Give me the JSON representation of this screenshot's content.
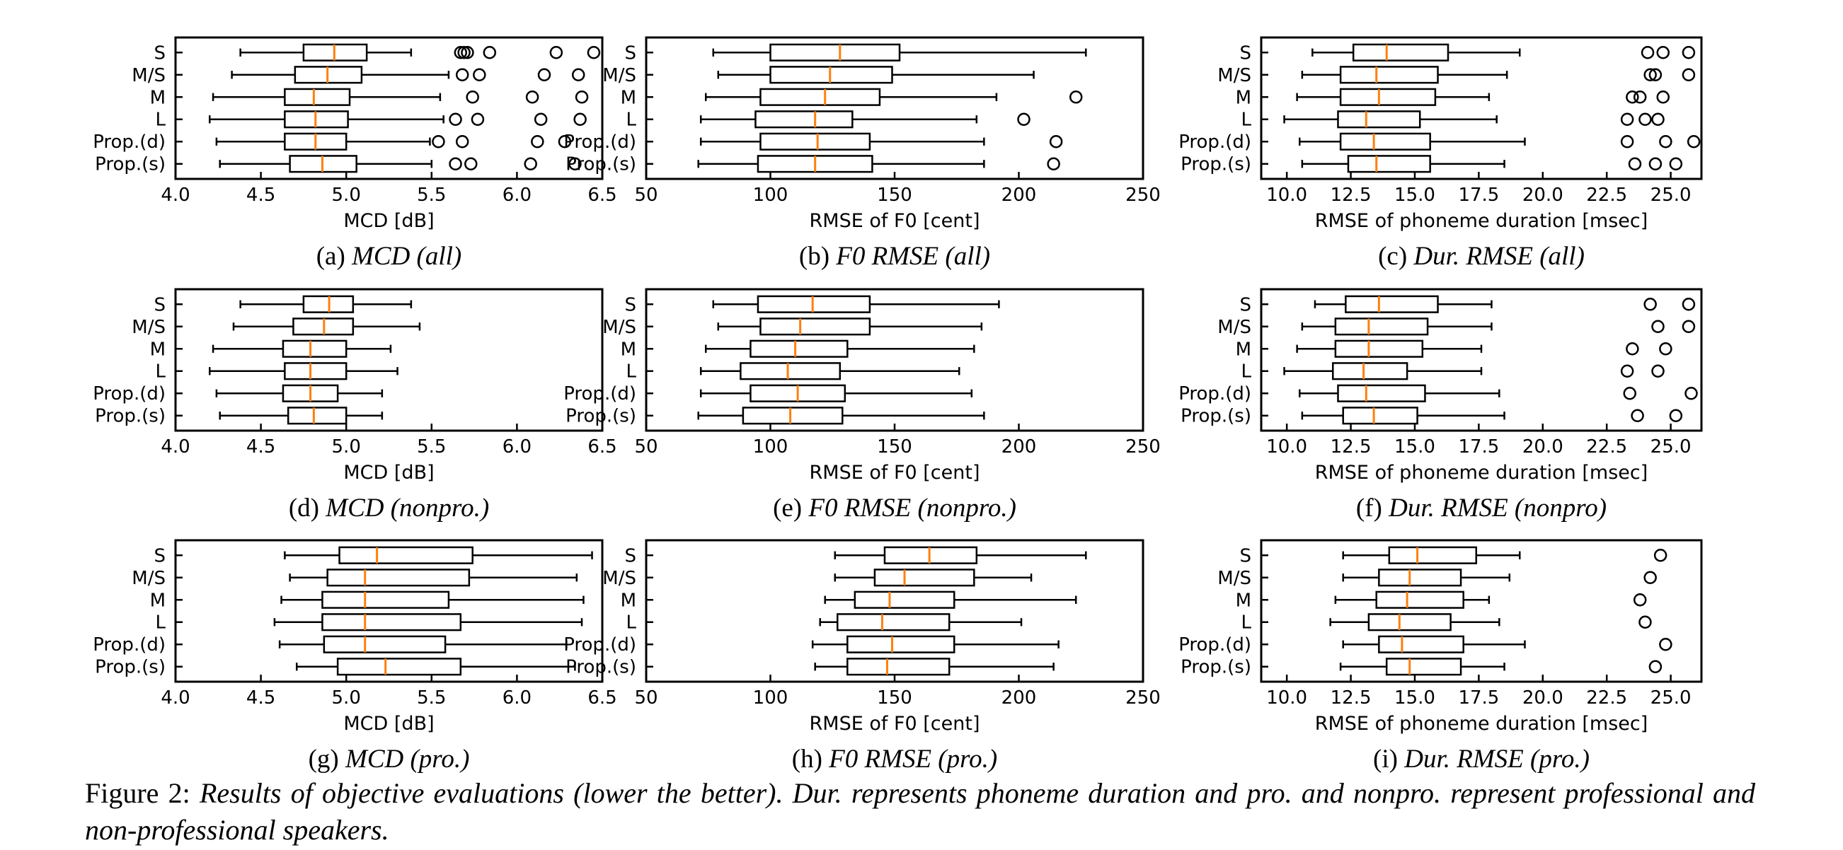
{
  "figure": {
    "caption_label": "Figure 2:",
    "caption_text": "Results of objective evaluations (lower the better). Dur. represents phoneme duration and pro. and nonpro. represent professional and non-professional speakers.",
    "colors": {
      "median": "#ff7f0e",
      "box": "#000000",
      "background": "#ffffff"
    }
  },
  "chart_data": [
    {
      "type": "boxplot",
      "xlabel": "MCD [dB]",
      "sub_label": "(a)",
      "sub_title": "MCD (all)",
      "xlim": [
        4.0,
        6.5
      ],
      "xticks": [
        4.0,
        4.5,
        5.0,
        5.5,
        6.0,
        6.5
      ],
      "tick_labels": [
        "4.0",
        "4.5",
        "5.0",
        "5.5",
        "6.0",
        "6.5"
      ],
      "categories": [
        "S",
        "M/S",
        "M",
        "L",
        "Prop.(d)",
        "Prop.(s)"
      ],
      "boxes": [
        {
          "whislo": 4.38,
          "q1": 4.75,
          "med": 4.93,
          "q3": 5.12,
          "whishi": 5.38,
          "fliers": [
            5.67,
            5.69,
            5.71,
            5.84,
            6.23,
            6.45
          ]
        },
        {
          "whislo": 4.33,
          "q1": 4.7,
          "med": 4.89,
          "q3": 5.09,
          "whishi": 5.6,
          "fliers": [
            5.68,
            5.78,
            6.16,
            6.36
          ]
        },
        {
          "whislo": 4.22,
          "q1": 4.64,
          "med": 4.81,
          "q3": 5.02,
          "whishi": 5.55,
          "fliers": [
            5.74,
            6.09,
            6.38
          ]
        },
        {
          "whislo": 4.2,
          "q1": 4.64,
          "med": 4.82,
          "q3": 5.01,
          "whishi": 5.57,
          "fliers": [
            5.64,
            5.77,
            6.14,
            6.37
          ]
        },
        {
          "whislo": 4.24,
          "q1": 4.64,
          "med": 4.82,
          "q3": 5.0,
          "whishi": 5.49,
          "fliers": [
            5.54,
            5.68,
            6.12,
            6.28
          ]
        },
        {
          "whislo": 4.26,
          "q1": 4.67,
          "med": 4.86,
          "q3": 5.06,
          "whishi": 5.5,
          "fliers": [
            5.64,
            5.73,
            6.08,
            6.34
          ]
        }
      ]
    },
    {
      "type": "boxplot",
      "xlabel": "RMSE of F0 [cent]",
      "sub_label": "(b)",
      "sub_title": "F0 RMSE (all)",
      "xlim": [
        50,
        250
      ],
      "xticks": [
        50,
        100,
        150,
        200,
        250
      ],
      "tick_labels": [
        "50",
        "100",
        "150",
        "200",
        "250"
      ],
      "categories": [
        "S",
        "M/S",
        "M",
        "L",
        "Prop.(d)",
        "Prop.(s)"
      ],
      "boxes": [
        {
          "whislo": 77,
          "q1": 100,
          "med": 128,
          "q3": 152,
          "whishi": 227,
          "fliers": []
        },
        {
          "whislo": 79,
          "q1": 100,
          "med": 124,
          "q3": 149,
          "whishi": 206,
          "fliers": []
        },
        {
          "whislo": 74,
          "q1": 96,
          "med": 122,
          "q3": 144,
          "whishi": 191,
          "fliers": [
            223
          ]
        },
        {
          "whislo": 72,
          "q1": 94,
          "med": 118,
          "q3": 133,
          "whishi": 183,
          "fliers": [
            202
          ]
        },
        {
          "whislo": 72,
          "q1": 96,
          "med": 119,
          "q3": 140,
          "whishi": 186,
          "fliers": [
            215
          ]
        },
        {
          "whislo": 71,
          "q1": 95,
          "med": 118,
          "q3": 141,
          "whishi": 186,
          "fliers": [
            214
          ]
        }
      ]
    },
    {
      "type": "boxplot",
      "xlabel": "RMSE of phoneme duration [msec]",
      "sub_label": "(c)",
      "sub_title": "Dur. RMSE (all)",
      "xlim": [
        9.0,
        26.2
      ],
      "xticks": [
        10.0,
        12.5,
        15.0,
        17.5,
        20.0,
        22.5,
        25.0
      ],
      "tick_labels": [
        "10.0",
        "12.5",
        "15.0",
        "17.5",
        "20.0",
        "22.5",
        "25.0"
      ],
      "categories": [
        "S",
        "M/S",
        "M",
        "L",
        "Prop.(d)",
        "Prop.(s)"
      ],
      "boxes": [
        {
          "whislo": 11.0,
          "q1": 12.6,
          "med": 13.9,
          "q3": 16.3,
          "whishi": 19.1,
          "fliers": [
            24.1,
            24.7,
            25.7
          ]
        },
        {
          "whislo": 10.6,
          "q1": 12.1,
          "med": 13.5,
          "q3": 15.9,
          "whishi": 18.6,
          "fliers": [
            24.2,
            24.4,
            25.7
          ]
        },
        {
          "whislo": 10.4,
          "q1": 12.1,
          "med": 13.6,
          "q3": 15.8,
          "whishi": 17.9,
          "fliers": [
            23.5,
            23.8,
            24.7
          ]
        },
        {
          "whislo": 9.9,
          "q1": 12.0,
          "med": 13.1,
          "q3": 15.2,
          "whishi": 18.2,
          "fliers": [
            23.3,
            24.0,
            24.5
          ]
        },
        {
          "whislo": 10.5,
          "q1": 12.1,
          "med": 13.4,
          "q3": 15.6,
          "whishi": 19.3,
          "fliers": [
            23.3,
            24.8,
            25.9
          ]
        },
        {
          "whislo": 10.6,
          "q1": 12.4,
          "med": 13.5,
          "q3": 15.6,
          "whishi": 18.5,
          "fliers": [
            23.6,
            24.4,
            25.2
          ]
        }
      ]
    },
    {
      "type": "boxplot",
      "xlabel": "MCD [dB]",
      "sub_label": "(d)",
      "sub_title": "MCD (nonpro.)",
      "xlim": [
        4.0,
        6.5
      ],
      "xticks": [
        4.0,
        4.5,
        5.0,
        5.5,
        6.0,
        6.5
      ],
      "tick_labels": [
        "4.0",
        "4.5",
        "5.0",
        "5.5",
        "6.0",
        "6.5"
      ],
      "categories": [
        "S",
        "M/S",
        "M",
        "L",
        "Prop.(d)",
        "Prop.(s)"
      ],
      "boxes": [
        {
          "whislo": 4.38,
          "q1": 4.75,
          "med": 4.9,
          "q3": 5.04,
          "whishi": 5.38,
          "fliers": []
        },
        {
          "whislo": 4.34,
          "q1": 4.69,
          "med": 4.87,
          "q3": 5.04,
          "whishi": 5.43,
          "fliers": []
        },
        {
          "whislo": 4.22,
          "q1": 4.63,
          "med": 4.79,
          "q3": 5.0,
          "whishi": 5.26,
          "fliers": []
        },
        {
          "whislo": 4.2,
          "q1": 4.64,
          "med": 4.79,
          "q3": 5.0,
          "whishi": 5.3,
          "fliers": []
        },
        {
          "whislo": 4.24,
          "q1": 4.63,
          "med": 4.79,
          "q3": 4.95,
          "whishi": 5.21,
          "fliers": []
        },
        {
          "whislo": 4.26,
          "q1": 4.66,
          "med": 4.81,
          "q3": 5.0,
          "whishi": 5.21,
          "fliers": []
        }
      ]
    },
    {
      "type": "boxplot",
      "xlabel": "RMSE of F0 [cent]",
      "sub_label": "(e)",
      "sub_title": "F0 RMSE (nonpro.)",
      "xlim": [
        50,
        250
      ],
      "xticks": [
        50,
        100,
        150,
        200,
        250
      ],
      "tick_labels": [
        "50",
        "100",
        "150",
        "200",
        "250"
      ],
      "categories": [
        "S",
        "M/S",
        "M",
        "L",
        "Prop.(d)",
        "Prop.(s)"
      ],
      "boxes": [
        {
          "whislo": 77,
          "q1": 95,
          "med": 117,
          "q3": 140,
          "whishi": 192,
          "fliers": []
        },
        {
          "whislo": 79,
          "q1": 96,
          "med": 112,
          "q3": 140,
          "whishi": 185,
          "fliers": []
        },
        {
          "whislo": 74,
          "q1": 92,
          "med": 110,
          "q3": 131,
          "whishi": 182,
          "fliers": []
        },
        {
          "whislo": 72,
          "q1": 88,
          "med": 107,
          "q3": 128,
          "whishi": 176,
          "fliers": []
        },
        {
          "whislo": 72,
          "q1": 92,
          "med": 111,
          "q3": 130,
          "whishi": 181,
          "fliers": []
        },
        {
          "whislo": 71,
          "q1": 89,
          "med": 108,
          "q3": 129,
          "whishi": 186,
          "fliers": []
        }
      ]
    },
    {
      "type": "boxplot",
      "xlabel": "RMSE of phoneme duration [msec]",
      "sub_label": "(f)",
      "sub_title": "Dur. RMSE (nonpro)",
      "xlim": [
        9.0,
        26.2
      ],
      "xticks": [
        10.0,
        12.5,
        15.0,
        17.5,
        20.0,
        22.5,
        25.0
      ],
      "tick_labels": [
        "10.0",
        "12.5",
        "15.0",
        "17.5",
        "20.0",
        "22.5",
        "25.0"
      ],
      "categories": [
        "S",
        "M/S",
        "M",
        "L",
        "Prop.(d)",
        "Prop.(s)"
      ],
      "boxes": [
        {
          "whislo": 11.1,
          "q1": 12.3,
          "med": 13.6,
          "q3": 15.9,
          "whishi": 18.0,
          "fliers": [
            24.2,
            25.7
          ]
        },
        {
          "whislo": 10.6,
          "q1": 11.9,
          "med": 13.2,
          "q3": 15.5,
          "whishi": 18.0,
          "fliers": [
            24.5,
            25.7
          ]
        },
        {
          "whislo": 10.4,
          "q1": 11.9,
          "med": 13.2,
          "q3": 15.3,
          "whishi": 17.6,
          "fliers": [
            23.5,
            24.8
          ]
        },
        {
          "whislo": 9.9,
          "q1": 11.8,
          "med": 13.0,
          "q3": 14.7,
          "whishi": 17.6,
          "fliers": [
            23.3,
            24.5
          ]
        },
        {
          "whislo": 10.5,
          "q1": 12.0,
          "med": 13.1,
          "q3": 15.4,
          "whishi": 18.3,
          "fliers": [
            23.4,
            25.8
          ]
        },
        {
          "whislo": 10.6,
          "q1": 12.2,
          "med": 13.4,
          "q3": 15.1,
          "whishi": 18.5,
          "fliers": [
            23.7,
            25.2
          ]
        }
      ]
    },
    {
      "type": "boxplot",
      "xlabel": "MCD [dB]",
      "sub_label": "(g)",
      "sub_title": "MCD (pro.)",
      "xlim": [
        4.0,
        6.5
      ],
      "xticks": [
        4.0,
        4.5,
        5.0,
        5.5,
        6.0,
        6.5
      ],
      "tick_labels": [
        "4.0",
        "4.5",
        "5.0",
        "5.5",
        "6.0",
        "6.5"
      ],
      "categories": [
        "S",
        "M/S",
        "M",
        "L",
        "Prop.(d)",
        "Prop.(s)"
      ],
      "boxes": [
        {
          "whislo": 4.64,
          "q1": 4.96,
          "med": 5.18,
          "q3": 5.74,
          "whishi": 6.44,
          "fliers": []
        },
        {
          "whislo": 4.67,
          "q1": 4.89,
          "med": 5.11,
          "q3": 5.72,
          "whishi": 6.35,
          "fliers": []
        },
        {
          "whislo": 4.62,
          "q1": 4.86,
          "med": 5.11,
          "q3": 5.6,
          "whishi": 6.39,
          "fliers": []
        },
        {
          "whislo": 4.58,
          "q1": 4.86,
          "med": 5.11,
          "q3": 5.67,
          "whishi": 6.38,
          "fliers": []
        },
        {
          "whislo": 4.61,
          "q1": 4.87,
          "med": 5.11,
          "q3": 5.58,
          "whishi": 6.29,
          "fliers": []
        },
        {
          "whislo": 4.71,
          "q1": 4.95,
          "med": 5.23,
          "q3": 5.67,
          "whishi": 6.34,
          "fliers": []
        }
      ]
    },
    {
      "type": "boxplot",
      "xlabel": "RMSE of F0 [cent]",
      "sub_label": "(h)",
      "sub_title": "F0 RMSE (pro.)",
      "xlim": [
        50,
        250
      ],
      "xticks": [
        50,
        100,
        150,
        200,
        250
      ],
      "tick_labels": [
        "50",
        "100",
        "150",
        "200",
        "250"
      ],
      "categories": [
        "S",
        "M/S",
        "M",
        "L",
        "Prop.(d)",
        "Prop.(s)"
      ],
      "boxes": [
        {
          "whislo": 126,
          "q1": 146,
          "med": 164,
          "q3": 183,
          "whishi": 227,
          "fliers": []
        },
        {
          "whislo": 126,
          "q1": 142,
          "med": 154,
          "q3": 182,
          "whishi": 205,
          "fliers": []
        },
        {
          "whislo": 122,
          "q1": 134,
          "med": 148,
          "q3": 174,
          "whishi": 223,
          "fliers": []
        },
        {
          "whislo": 120,
          "q1": 127,
          "med": 145,
          "q3": 172,
          "whishi": 201,
          "fliers": []
        },
        {
          "whislo": 117,
          "q1": 131,
          "med": 149,
          "q3": 174,
          "whishi": 216,
          "fliers": []
        },
        {
          "whislo": 118,
          "q1": 131,
          "med": 147,
          "q3": 172,
          "whishi": 214,
          "fliers": []
        }
      ]
    },
    {
      "type": "boxplot",
      "xlabel": "RMSE of phoneme duration [msec]",
      "sub_label": "(i)",
      "sub_title": "Dur. RMSE (pro.)",
      "xlim": [
        9.0,
        26.2
      ],
      "xticks": [
        10.0,
        12.5,
        15.0,
        17.5,
        20.0,
        22.5,
        25.0
      ],
      "tick_labels": [
        "10.0",
        "12.5",
        "15.0",
        "17.5",
        "20.0",
        "22.5",
        "25.0"
      ],
      "categories": [
        "S",
        "M/S",
        "M",
        "L",
        "Prop.(d)",
        "Prop.(s)"
      ],
      "boxes": [
        {
          "whislo": 12.2,
          "q1": 14.0,
          "med": 15.1,
          "q3": 17.4,
          "whishi": 19.1,
          "fliers": [
            24.6
          ]
        },
        {
          "whislo": 12.2,
          "q1": 13.6,
          "med": 14.8,
          "q3": 16.8,
          "whishi": 18.7,
          "fliers": [
            24.2
          ]
        },
        {
          "whislo": 11.9,
          "q1": 13.5,
          "med": 14.7,
          "q3": 16.9,
          "whishi": 17.9,
          "fliers": [
            23.8
          ]
        },
        {
          "whislo": 11.7,
          "q1": 13.2,
          "med": 14.4,
          "q3": 16.4,
          "whishi": 18.3,
          "fliers": [
            24.0
          ]
        },
        {
          "whislo": 12.2,
          "q1": 13.6,
          "med": 14.5,
          "q3": 16.9,
          "whishi": 19.3,
          "fliers": [
            24.8
          ]
        },
        {
          "whislo": 12.1,
          "q1": 13.9,
          "med": 14.8,
          "q3": 16.8,
          "whishi": 18.5,
          "fliers": [
            24.4
          ]
        }
      ]
    }
  ]
}
